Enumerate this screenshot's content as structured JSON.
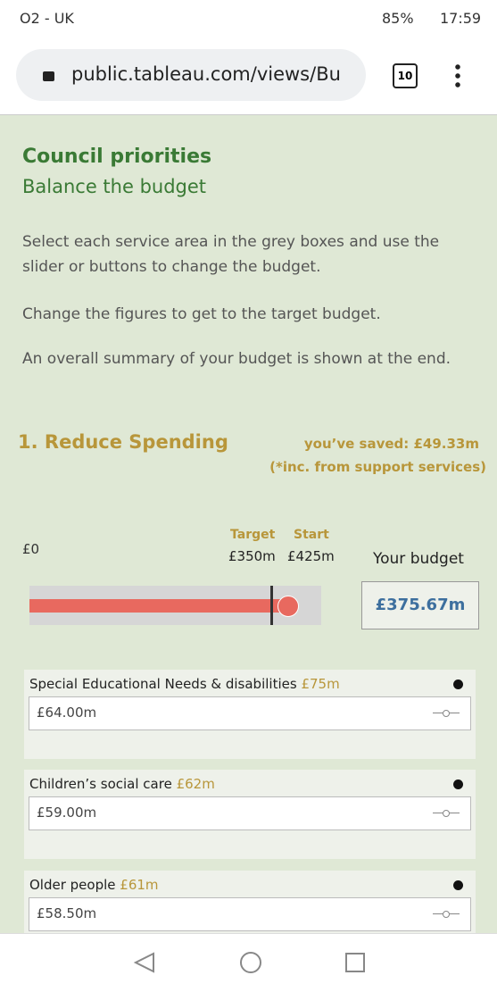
{
  "status_bar": {
    "carrier": "O2 - UK",
    "battery": "85%",
    "time": "17:59"
  },
  "browser": {
    "url": "public.tableau.com/views/Bu",
    "tabs": "10"
  },
  "header": {
    "title": "Council priorities",
    "subtitle": "Balance the budget"
  },
  "intro": [
    "Select each service area in the grey boxes and use the slider or buttons to change the budget.",
    "Change the figures to get to the target budget.",
    "An overall summary of your budget is shown at the end."
  ],
  "section": {
    "title": "1. Reduce Spending",
    "saved": "you’ve saved: £49.33m",
    "note": "(*inc. from support services)"
  },
  "budget": {
    "zero": "£0",
    "target_label": "Target",
    "start_label": "Start",
    "target": "£350m",
    "start": "£425m",
    "your_label": "Your budget",
    "your_value": "£375.67m"
  },
  "items": [
    {
      "name": "Special Educational Needs  & disabilities",
      "budget": "£75m",
      "value": "£64.00m"
    },
    {
      "name": "Children’s social care",
      "budget": "£62m",
      "value": "£59.00m"
    },
    {
      "name": "Older people",
      "budget": "£61m",
      "value": "£58.50m"
    }
  ]
}
